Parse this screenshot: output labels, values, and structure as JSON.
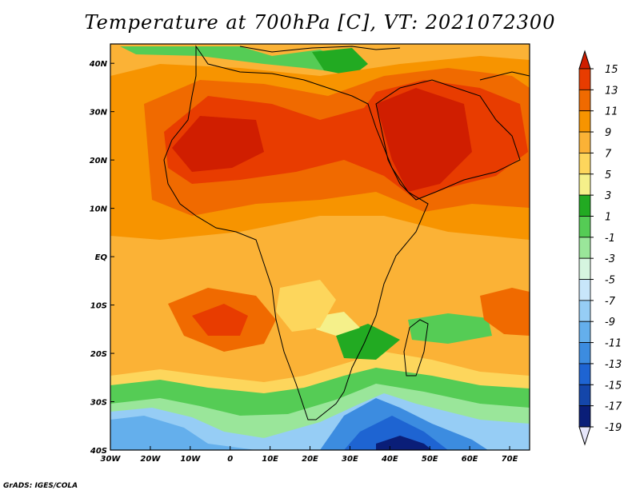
{
  "title": "Temperature at 700hPa [C], VT: 2021072300",
  "credit": "GrADS: IGES/COLA",
  "axes": {
    "lon_labels": [
      "30W",
      "20W",
      "10W",
      "0",
      "10E",
      "20E",
      "30E",
      "40E",
      "50E",
      "60E",
      "70E"
    ],
    "lon_values": [
      -30,
      -20,
      -10,
      0,
      10,
      20,
      30,
      40,
      50,
      60,
      70
    ],
    "lat_labels": [
      "40N",
      "30N",
      "20N",
      "10N",
      "EQ",
      "10S",
      "20S",
      "30S",
      "40S"
    ],
    "lat_values": [
      40,
      30,
      20,
      10,
      0,
      -10,
      -20,
      -30,
      -40
    ],
    "lon_range": [
      -30,
      75
    ],
    "lat_range": [
      -40,
      44
    ]
  },
  "colorbar": {
    "labels": [
      "15",
      "13",
      "11",
      "9",
      "7",
      "5",
      "3",
      "1",
      "-1",
      "-3",
      "-5",
      "-7",
      "-9",
      "-11",
      "-13",
      "-15",
      "-17",
      "-19"
    ],
    "colors": [
      "#d01e00",
      "#e83c00",
      "#f06a00",
      "#f79400",
      "#fbb236",
      "#fdd65c",
      "#f5f08a",
      "#22aa22",
      "#55cc55",
      "#9ae69a",
      "#d6f5e0",
      "#c8e6fa",
      "#96cdf5",
      "#64afec",
      "#3c8ce0",
      "#1e64d2",
      "#1446aa",
      "#0a1e78",
      "#e6e6fa"
    ]
  },
  "regions": [
    {
      "name": "Sahara heat core",
      "level": "15"
    },
    {
      "name": "Arabian heat core",
      "level": "15"
    },
    {
      "name": "Southern Ocean cold pool",
      "level": "-19"
    }
  ]
}
